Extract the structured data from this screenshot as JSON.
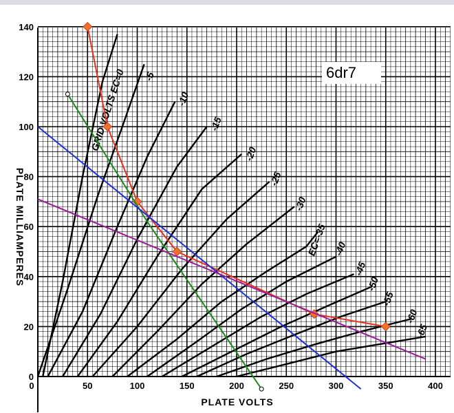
{
  "chart_data": {
    "type": "line",
    "title": "6dr7",
    "xlabel": "PLATE VOLTS",
    "ylabel": "PLATE MILLIAMPERES",
    "xlim": [
      0,
      400
    ],
    "ylim": [
      0,
      140
    ],
    "x_ticks": [
      {
        "value": 0,
        "label": "0"
      },
      {
        "value": 50,
        "label": "50"
      },
      {
        "value": 100,
        "label": "100"
      },
      {
        "value": 150,
        "label": "150"
      },
      {
        "value": 200,
        "label": "200"
      },
      {
        "value": 250,
        "label": "250"
      },
      {
        "value": 300,
        "label": "300"
      },
      {
        "value": 350,
        "label": "350"
      },
      {
        "value": 400,
        "label": "400"
      }
    ],
    "y_ticks": [
      {
        "value": 0,
        "label": "0"
      },
      {
        "value": 20,
        "label": "20"
      },
      {
        "value": 40,
        "label": "40"
      },
      {
        "value": 60,
        "label": "60"
      },
      {
        "value": 80,
        "label": "80"
      },
      {
        "value": 100,
        "label": "100"
      },
      {
        "value": 120,
        "label": "120"
      },
      {
        "value": 140,
        "label": "140"
      }
    ],
    "grid": true,
    "grid_curve_label": "GRID VOLTS EC=0",
    "grid_curves": [
      {
        "label": "-5",
        "label_at": [
          114,
          118
        ],
        "points": [
          [
            0,
            0
          ],
          [
            30,
            35
          ],
          [
            60,
            72
          ],
          [
            85,
            100
          ],
          [
            107,
            125
          ]
        ]
      },
      {
        "label": "-10",
        "label_at": [
          147,
          108
        ],
        "points": [
          [
            10,
            0
          ],
          [
            45,
            26
          ],
          [
            80,
            60
          ],
          [
            110,
            88
          ],
          [
            138,
            110
          ]
        ]
      },
      {
        "label": "-15",
        "label_at": [
          180,
          98
        ],
        "points": [
          [
            25,
            0
          ],
          [
            63,
            25
          ],
          [
            100,
            55
          ],
          [
            140,
            84
          ],
          [
            170,
            100
          ]
        ]
      },
      {
        "label": "-20",
        "label_at": [
          215,
          86
        ],
        "points": [
          [
            40,
            0
          ],
          [
            80,
            22
          ],
          [
            120,
            48
          ],
          [
            165,
            75
          ],
          [
            205,
            89
          ]
        ]
      },
      {
        "label": "-25",
        "label_at": [
          240,
          76
        ],
        "points": [
          [
            55,
            0
          ],
          [
            100,
            20
          ],
          [
            145,
            43
          ],
          [
            190,
            63
          ],
          [
            233,
            78
          ]
        ]
      },
      {
        "label": "-30",
        "label_at": [
          265,
          66
        ],
        "points": [
          [
            75,
            0
          ],
          [
            120,
            18
          ],
          [
            165,
            37
          ],
          [
            210,
            53
          ],
          [
            258,
            68
          ]
        ]
      },
      {
        "label": "EC=-35",
        "label_at": [
          278,
          48
        ],
        "points": [
          [
            90,
            0
          ],
          [
            140,
            15
          ],
          [
            185,
            30
          ],
          [
            230,
            42
          ],
          [
            270,
            52
          ],
          [
            282,
            58
          ]
        ]
      },
      {
        "label": "-40",
        "label_at": [
          305,
          48
        ],
        "points": [
          [
            110,
            0
          ],
          [
            160,
            14
          ],
          [
            205,
            27
          ],
          [
            250,
            38
          ],
          [
            300,
            48
          ]
        ]
      },
      {
        "label": "-45",
        "label_at": [
          325,
          40
        ],
        "points": [
          [
            125,
            0
          ],
          [
            175,
            12
          ],
          [
            225,
            24
          ],
          [
            270,
            33
          ],
          [
            318,
            41
          ]
        ]
      },
      {
        "label": "-50",
        "label_at": [
          338,
          34
        ],
        "points": [
          [
            145,
            0
          ],
          [
            195,
            10
          ],
          [
            245,
            20
          ],
          [
            290,
            28
          ],
          [
            336,
            36
          ]
        ]
      },
      {
        "label": "-55",
        "label_at": [
          353,
          28
        ],
        "points": [
          [
            160,
            0
          ],
          [
            210,
            9
          ],
          [
            260,
            17
          ],
          [
            305,
            24
          ],
          [
            350,
            30
          ]
        ]
      },
      {
        "label": "-60",
        "label_at": [
          377,
          21
        ],
        "points": [
          [
            180,
            0
          ],
          [
            230,
            7
          ],
          [
            280,
            13
          ],
          [
            325,
            18
          ],
          [
            375,
            23
          ]
        ]
      },
      {
        "label": "-65",
        "label_at": [
          387,
          15
        ],
        "points": [
          [
            200,
            0
          ],
          [
            250,
            5
          ],
          [
            300,
            10
          ],
          [
            345,
            13
          ],
          [
            390,
            16
          ]
        ]
      }
    ],
    "ec0_curve": [
      [
        5,
        0
      ],
      [
        25,
        38
      ],
      [
        45,
        80
      ],
      [
        65,
        118
      ],
      [
        80,
        137
      ]
    ],
    "overlays": [
      {
        "color": "#e8301c",
        "points": [
          [
            50,
            140
          ],
          [
            70,
            100
          ],
          [
            100,
            70
          ],
          [
            140,
            50
          ],
          [
            278,
            25
          ],
          [
            350,
            20
          ]
        ],
        "markers": "diamond",
        "marker_color": "#f07030"
      },
      {
        "color": "#1a8a1a",
        "points": [
          [
            30,
            113
          ],
          [
            110,
            62
          ],
          [
            225,
            -5
          ]
        ],
        "endpoint_markers": true
      },
      {
        "color": "#1c2fd8",
        "points": [
          [
            0,
            100
          ],
          [
            325,
            -5
          ]
        ]
      },
      {
        "color": "#9a1c9a",
        "points": [
          [
            0,
            71
          ],
          [
            390,
            7
          ]
        ]
      }
    ]
  }
}
